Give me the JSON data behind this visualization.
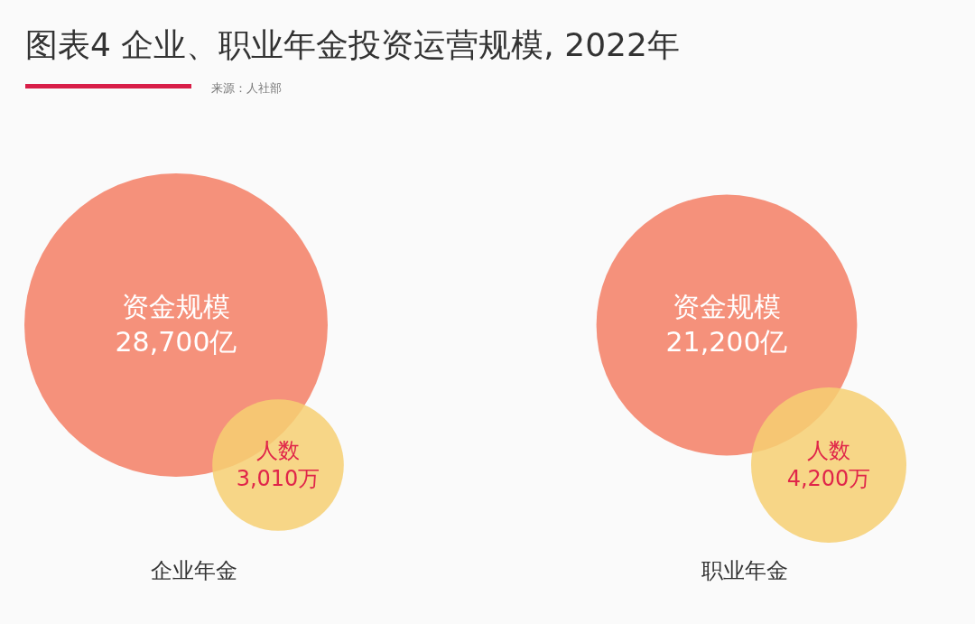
{
  "chart_data": {
    "type": "other",
    "title": "图表4 企业、职业年金投资运营规模, 2022年",
    "annotations": [
      "来源：人社部"
    ],
    "categories": [
      "企业年金",
      "职业年金"
    ],
    "series": [
      {
        "name": "资金规模",
        "color": "#f5917b",
        "values": [
          28700,
          21200
        ],
        "value_labels": [
          "28,700亿",
          "21,200亿"
        ]
      },
      {
        "name": "人数",
        "color": "#f6cf72",
        "values": [
          3010,
          4200
        ],
        "value_labels": [
          "3,010万",
          "4,200万"
        ]
      }
    ]
  }
}
